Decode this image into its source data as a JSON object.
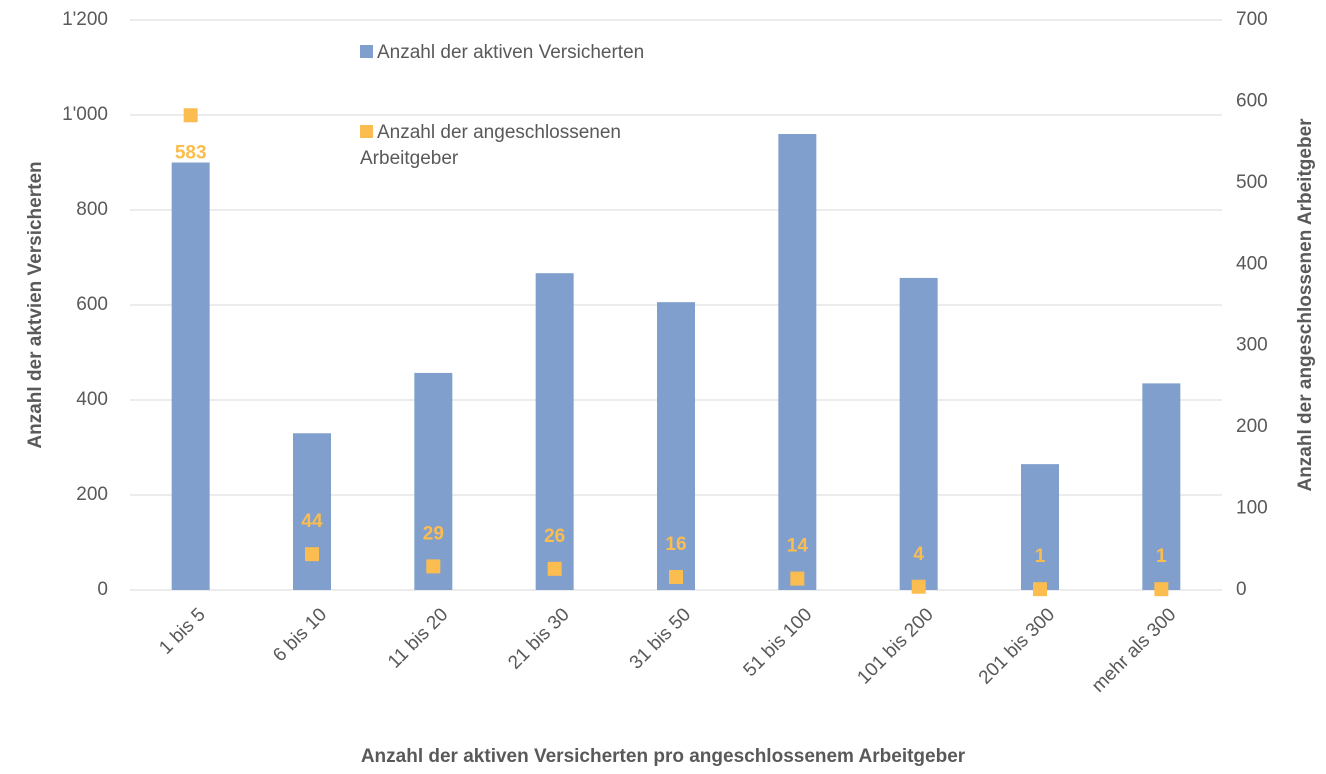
{
  "chart_data": {
    "type": "bar_scatter",
    "x_label": "Anzahl der aktiven Versicherten pro angeschlossenem Arbeitgeber",
    "y_label": "Anzahl der aktvien Versicherten",
    "y2_label": "Anzahl der angeschlossenen Arbeitgeber",
    "categories": [
      "1 bis 5",
      "6 bis 10",
      "11 bis 20",
      "21 bis 30",
      "31 bis 50",
      "51 bis 100",
      "101 bis 200",
      "201 bis 300",
      "mehr als 300"
    ],
    "series": [
      {
        "name": "Anzahl der aktiven Versicherten",
        "type": "bar",
        "color": "#819fcd",
        "values": [
          900,
          330,
          457,
          667,
          606,
          960,
          657,
          265,
          435
        ]
      },
      {
        "name": "Anzahl der angeschlossenen Arbeitgeber",
        "type": "scatter",
        "axis": "y2",
        "color": "#fbbd4f",
        "values": [
          583,
          44,
          29,
          26,
          16,
          14,
          4,
          1,
          1
        ]
      }
    ],
    "ylim": [
      0,
      1200
    ],
    "yticks": [
      0,
      200,
      400,
      600,
      800,
      {
        "value": 1000,
        "label": "1'000"
      },
      {
        "value": 1200,
        "label": "1'200"
      }
    ],
    "y2lim": [
      0,
      700
    ],
    "y2ticks": [
      0,
      100,
      200,
      300,
      400,
      500,
      600,
      700
    ],
    "grid": true
  }
}
